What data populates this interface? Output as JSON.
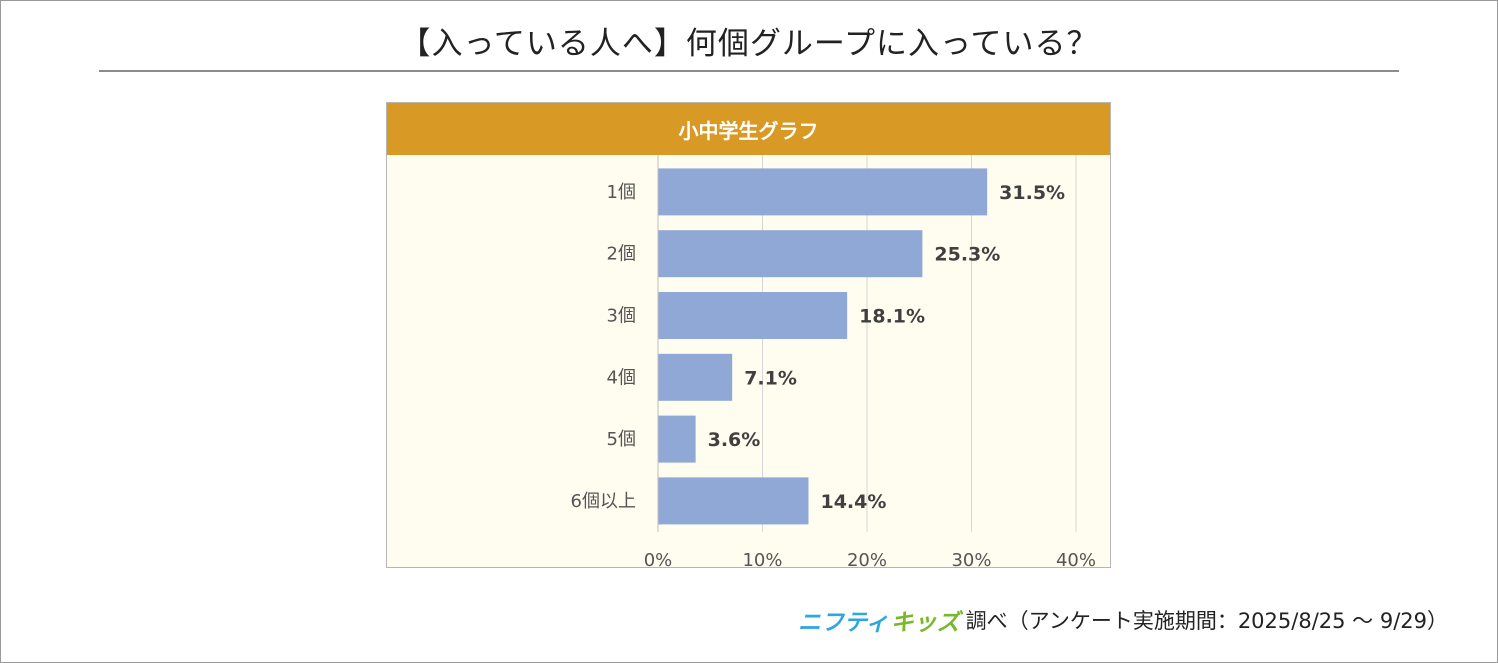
{
  "title": "【入っている人へ】何個グループに入っている？",
  "chart_data": {
    "type": "bar",
    "orientation": "horizontal",
    "title": "小中学生グラフ",
    "categories": [
      "1個",
      "2個",
      "3個",
      "4個",
      "5個",
      "6個以上"
    ],
    "values": [
      31.5,
      25.3,
      18.1,
      7.1,
      3.6,
      14.4
    ],
    "value_labels": [
      "31.5%",
      "25.3%",
      "18.1%",
      "7.1%",
      "3.6%",
      "14.4%"
    ],
    "xlim": [
      0,
      40
    ],
    "xticks": [
      "0%",
      "10%",
      "20%",
      "30%",
      "40%"
    ],
    "xtick_values": [
      0,
      10,
      20,
      30,
      40
    ],
    "grid": true,
    "bar_color": "#8fa8d5"
  },
  "footer": {
    "brand_part1": "ニフティ",
    "brand_part2": "キッズ",
    "text": "調べ（アンケート実施期間：2025/8/25 ～ 9/29）"
  },
  "colors": {
    "header_bg": "#d99a25",
    "plot_bg": "#fffdf0",
    "brand_blue": "#2ea6e0",
    "brand_green": "#79b829"
  }
}
